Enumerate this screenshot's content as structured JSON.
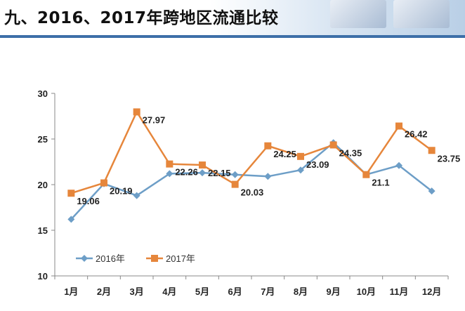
{
  "header": {
    "title": "九、2016、2017年跨地区流通比较"
  },
  "chart_data": {
    "type": "line",
    "categories": [
      "1月",
      "2月",
      "3月",
      "4月",
      "5月",
      "6月",
      "7月",
      "8月",
      "9月",
      "10月",
      "11月",
      "12月"
    ],
    "ylim": [
      10,
      30
    ],
    "yticks": [
      10,
      15,
      20,
      25,
      30
    ],
    "grid": false,
    "legend_position": "bottom-left-inside",
    "series": [
      {
        "name": "2016年",
        "color": "#6d9ec7",
        "marker": "diamond",
        "values": [
          16.2,
          20.1,
          18.8,
          21.2,
          21.3,
          21.1,
          20.9,
          21.6,
          24.6,
          21.1,
          22.1,
          19.3
        ],
        "labels": [
          "",
          "",
          "",
          "",
          "",
          "",
          "",
          "",
          "",
          "",
          "",
          ""
        ]
      },
      {
        "name": "2017年",
        "color": "#e6863b",
        "marker": "square",
        "values": [
          19.06,
          20.19,
          27.97,
          22.26,
          22.15,
          20.03,
          24.25,
          23.09,
          24.35,
          21.1,
          26.42,
          23.75
        ],
        "labels": [
          "19.06",
          "20.19",
          "27.97",
          "22.26",
          "22.15",
          "20.03",
          "24.25",
          "23.09",
          "24.35",
          "21.1",
          "26.42",
          "23.75"
        ]
      }
    ]
  }
}
